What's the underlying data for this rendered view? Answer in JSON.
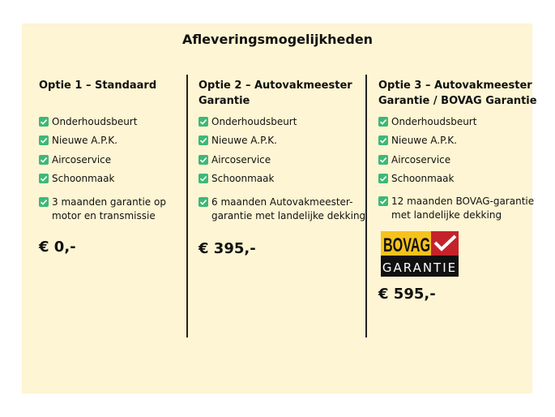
{
  "title": "Afleveringsmogelijkheden",
  "accent_check_color": "#3db877",
  "options": [
    {
      "heading": [
        "Optie 1 – Standaard"
      ],
      "items": [
        "Onderhoudsbeurt",
        "Nieuwe A.P.K.",
        "Aircoservice",
        "Schoonmaak"
      ],
      "extra": [
        "3 maanden garantie op",
        "motor en transmissie"
      ],
      "price": "€ 0,-"
    },
    {
      "heading": [
        "Optie 2 – Autovakmeester",
        "Garantie"
      ],
      "items": [
        "Onderhoudsbeurt",
        "Nieuwe A.P.K.",
        "Aircoservice",
        "Schoonmaak"
      ],
      "extra": [
        "6 maanden Autovakmeester-",
        "garantie met landelijke dekking"
      ],
      "price": "€ 395,-"
    },
    {
      "heading": [
        "Optie 3 – Autovakmeester",
        "Garantie / BOVAG Garantie"
      ],
      "items": [
        "Onderhoudsbeurt",
        "Nieuwe A.P.K.",
        "Aircoservice",
        "Schoonmaak"
      ],
      "extra": [
        "12 maanden BOVAG-garantie",
        "met landelijke dekking"
      ],
      "price": "€ 595,-",
      "logo": {
        "top": "BOVAG",
        "bottom": "GARANTIE"
      }
    }
  ]
}
